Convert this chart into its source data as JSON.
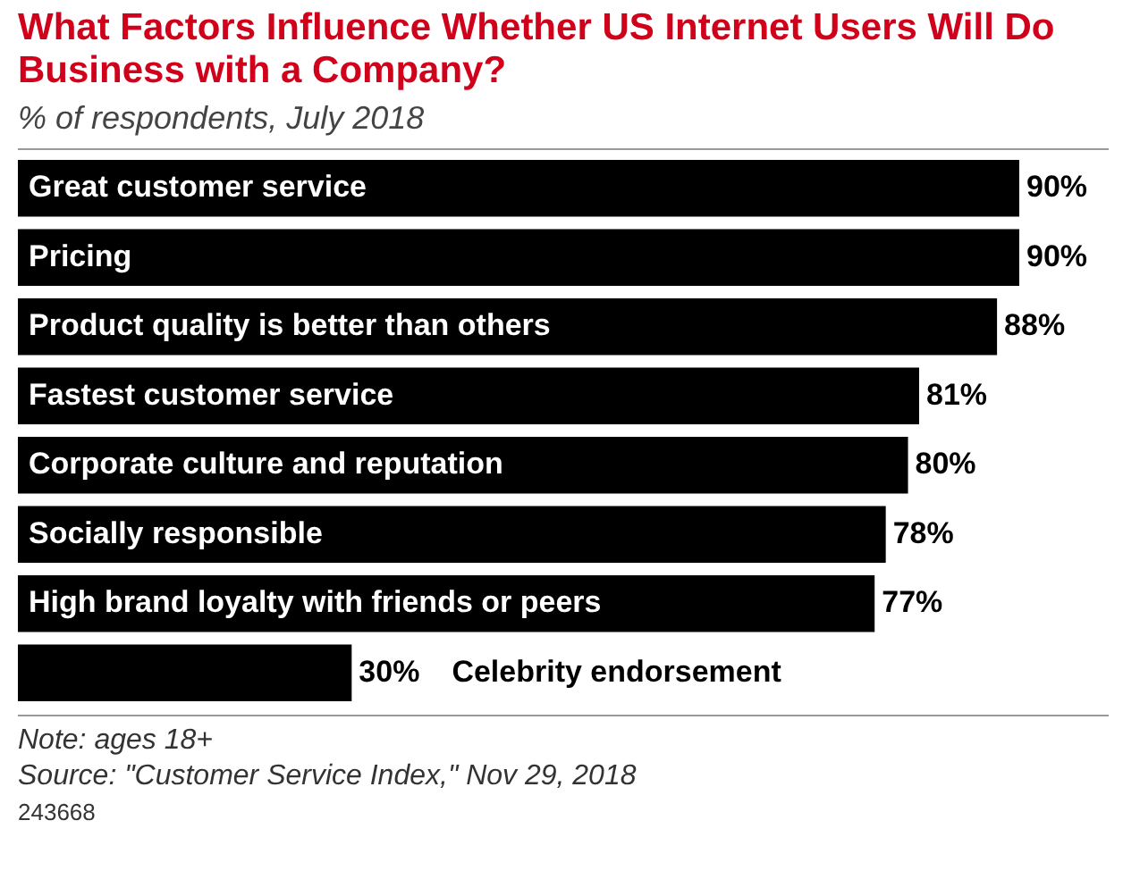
{
  "chart_data": {
    "type": "bar",
    "orientation": "horizontal",
    "title": "What Factors Influence Whether US Internet Users Will Do Business with a Company?",
    "subtitle": "% of respondents, July 2018",
    "categories": [
      "Great customer service",
      "Pricing",
      "Product quality is better than others",
      "Fastest customer service",
      "Corporate culture and reputation",
      "Socially responsible",
      "High brand loyalty with friends or peers",
      "Celebrity endorsement"
    ],
    "values": [
      90,
      90,
      88,
      81,
      80,
      78,
      77,
      30
    ],
    "value_labels": [
      "90%",
      "90%",
      "88%",
      "81%",
      "80%",
      "78%",
      "77%",
      "30%"
    ],
    "color": "#000000",
    "legend": false,
    "annotations": [
      "Note: ages 18+",
      "Source: \"Customer Service Index,\" Nov 29, 2018",
      "243668"
    ]
  }
}
